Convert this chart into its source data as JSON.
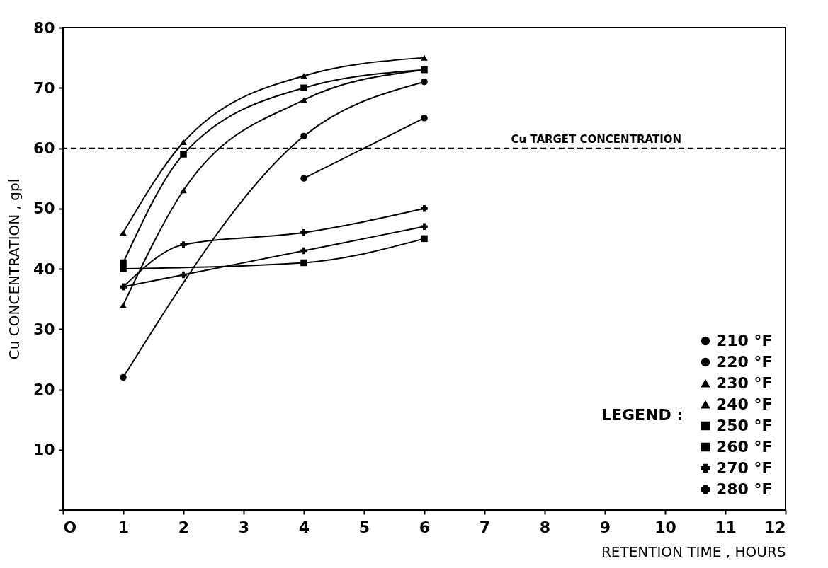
{
  "chart_data": {
    "type": "line",
    "xlabel": "RETENTION TIME , HOURS",
    "ylabel": "Cu CONCENTRATION , gpl",
    "legend_title": "LEGEND :",
    "legend": "bottom right",
    "grid": false,
    "line_style": "solid",
    "xlim": [
      0,
      12
    ],
    "xticks": [
      {
        "value": 0,
        "label": "O"
      },
      1,
      2,
      3,
      4,
      5,
      6,
      7,
      8,
      9,
      10,
      11,
      12
    ],
    "ylim": [
      0,
      80
    ],
    "yticks": [
      {
        "value": 0,
        "label": null
      },
      10,
      20,
      30,
      40,
      50,
      60,
      70,
      80
    ],
    "ref_lines": [
      {
        "axis": "y",
        "value": 60,
        "label": "Cu TARGET CONCENTRATION",
        "line_style": "dashed"
      }
    ],
    "series": [
      {
        "name": "210 °F",
        "color": "#000000",
        "marker": "circle",
        "x": [
          4,
          6
        ],
        "values": [
          55,
          65
        ]
      },
      {
        "name": "220 °F",
        "color": "#000000",
        "marker": "circle",
        "x": [
          1,
          4,
          6
        ],
        "values": [
          22,
          62,
          71
        ]
      },
      {
        "name": "230 °F",
        "color": "#000000",
        "marker": "triangle",
        "x": [
          1,
          2,
          4,
          6
        ],
        "values": [
          34,
          53,
          68,
          73
        ]
      },
      {
        "name": "240 °F",
        "color": "#000000",
        "marker": "triangle",
        "x": [
          1,
          2,
          4,
          6
        ],
        "values": [
          46,
          61,
          72,
          75
        ]
      },
      {
        "name": "250 °F",
        "color": "#000000",
        "marker": "square",
        "x": [
          1,
          2,
          4,
          6
        ],
        "values": [
          41,
          59,
          70,
          73
        ]
      },
      {
        "name": "260 °F",
        "color": "#000000",
        "marker": "square",
        "x": [
          1,
          4,
          6
        ],
        "values": [
          40,
          41,
          45
        ]
      },
      {
        "name": "270 °F",
        "color": "#000000",
        "marker": "cross",
        "x": [
          1,
          2,
          4,
          6
        ],
        "values": [
          37,
          44,
          46,
          50
        ]
      },
      {
        "name": "280 °F",
        "color": "#000000",
        "marker": "cross",
        "x": [
          1,
          2,
          4,
          6
        ],
        "values": [
          37,
          39,
          43,
          47
        ]
      }
    ]
  }
}
